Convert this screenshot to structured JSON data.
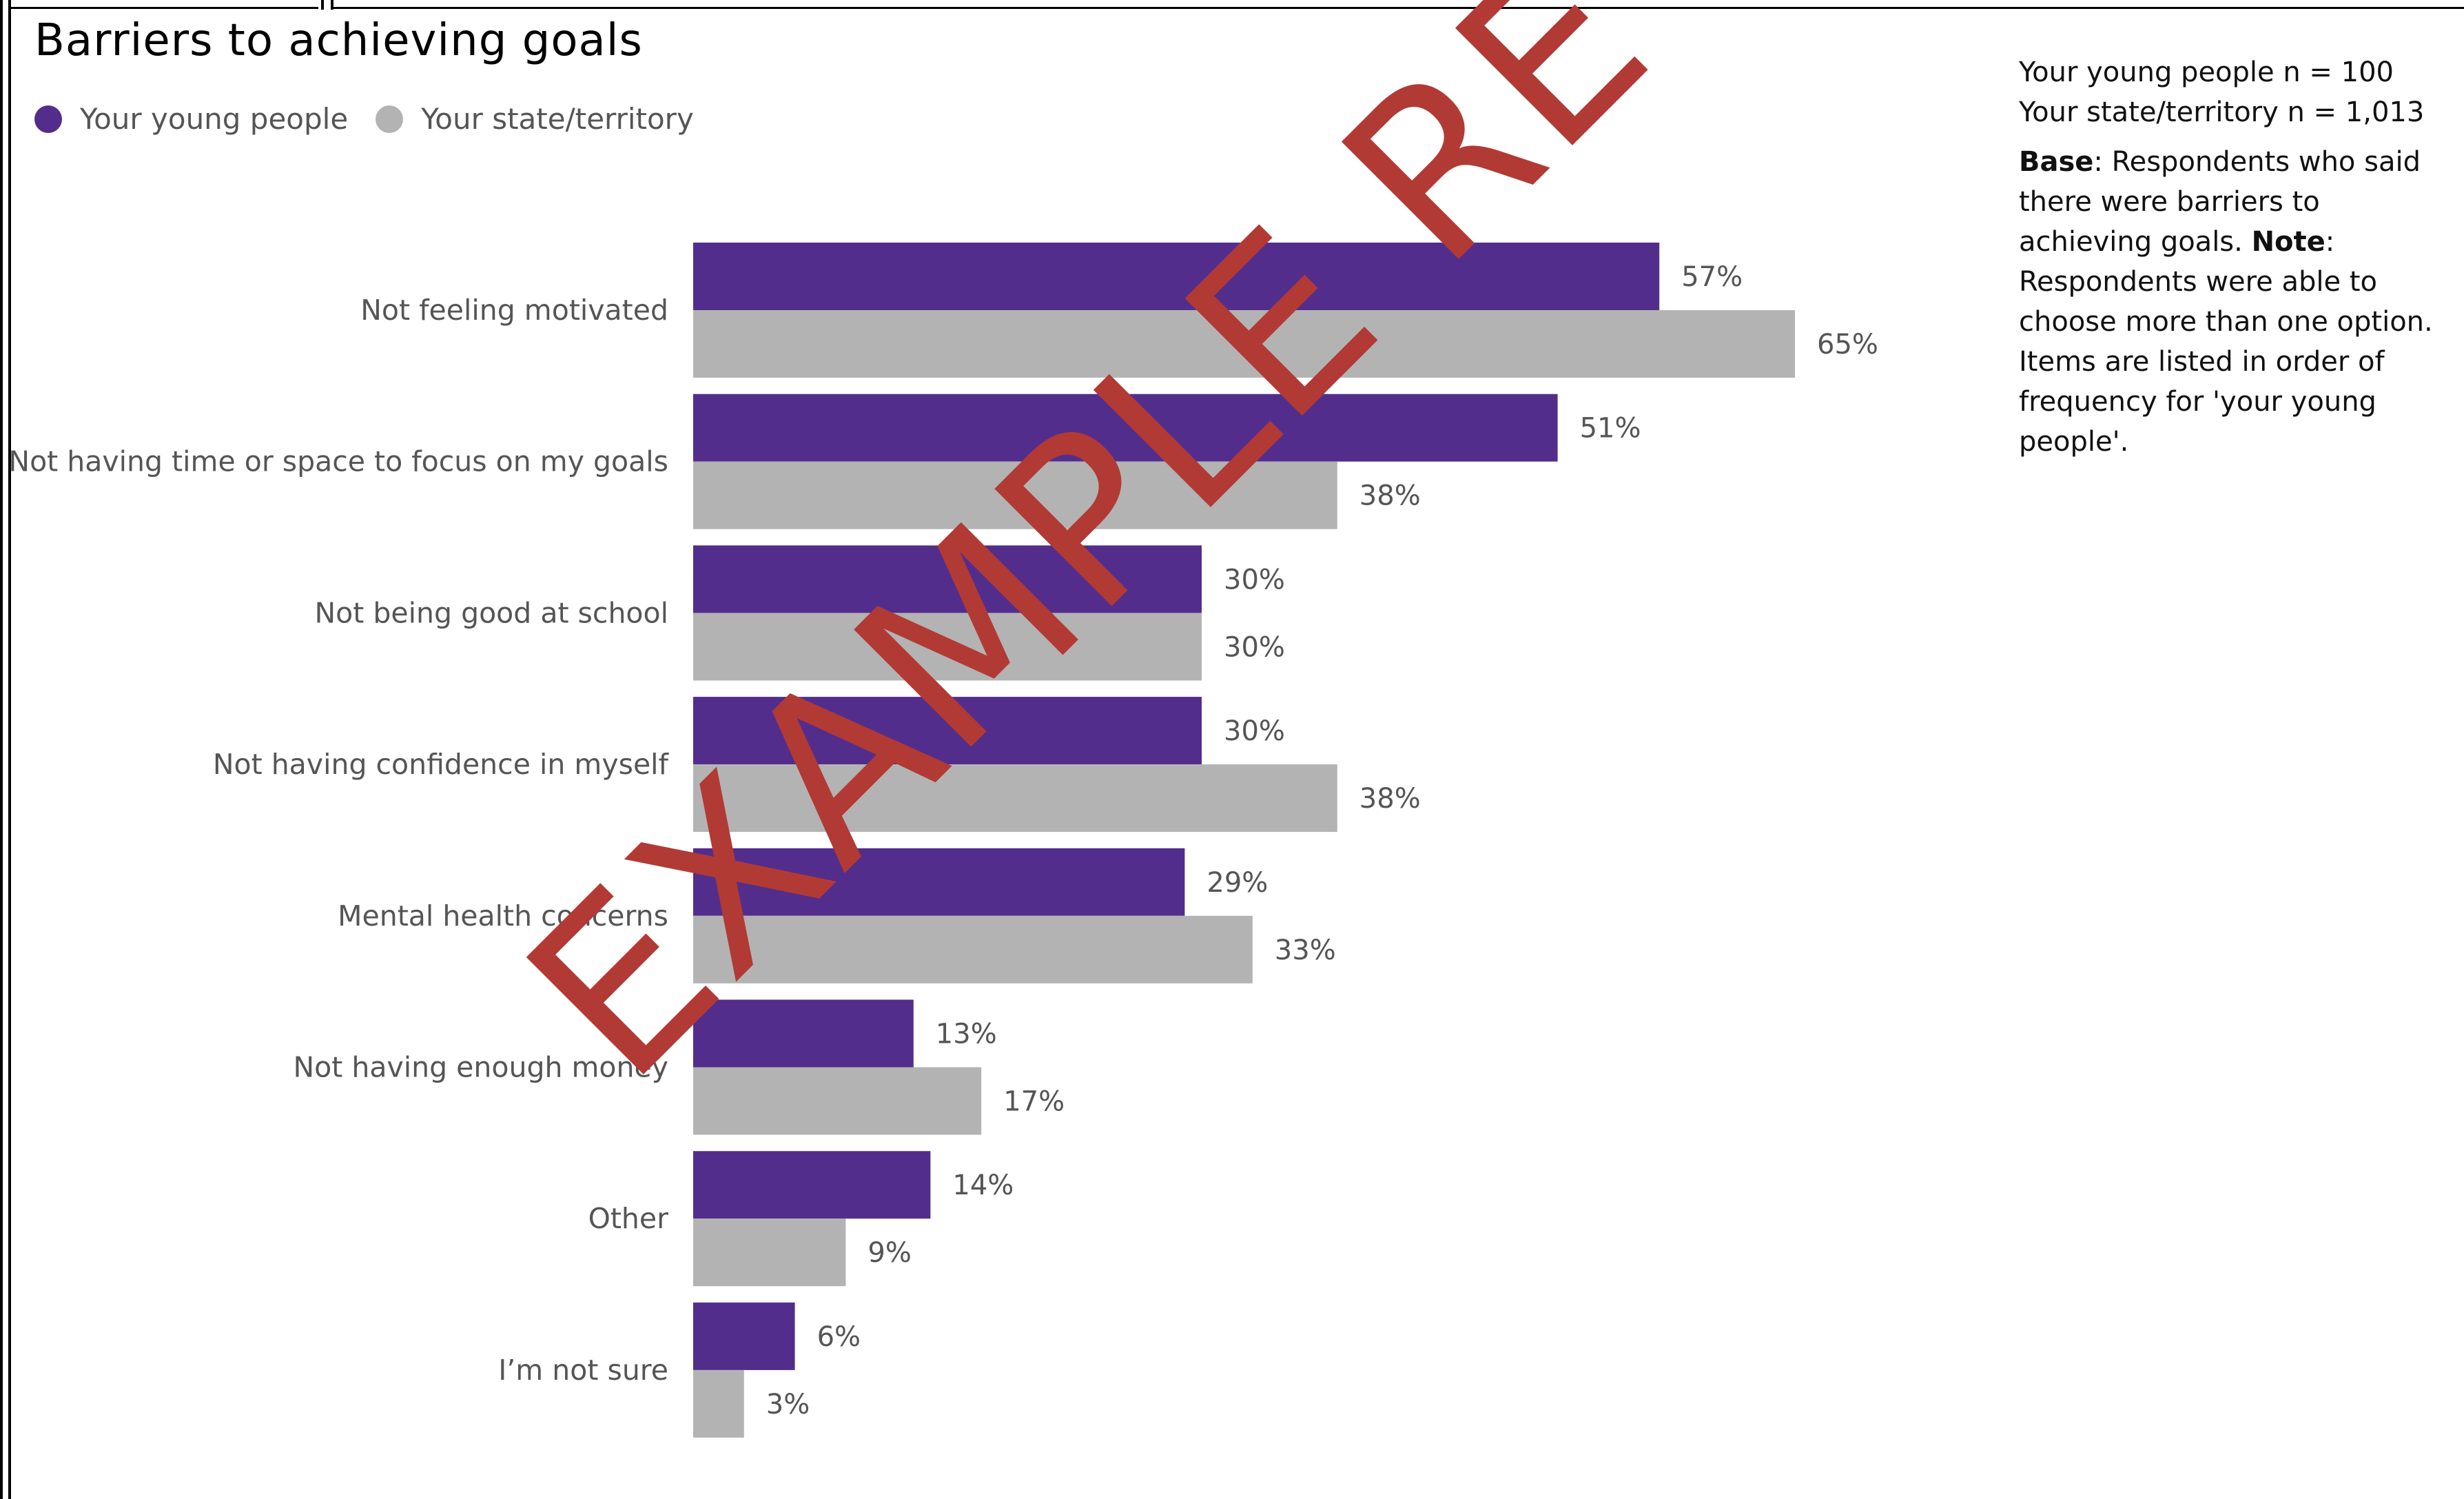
{
  "chart_data": {
    "type": "bar",
    "orientation": "horizontal",
    "title": "Barriers to achieving goals",
    "categories": [
      "Not feeling motivated",
      "Not having time or space to focus on my goals",
      "Not being good at school",
      "Not having confidence in myself",
      "Mental health concerns",
      "Not having enough money",
      "Other",
      "I’m not sure"
    ],
    "series": [
      {
        "name": "Your young people",
        "color": "#532d8c",
        "values": [
          57,
          51,
          30,
          30,
          29,
          13,
          14,
          6
        ],
        "labels": [
          "57%",
          "51%",
          "30%",
          "30%",
          "29%",
          "13%",
          "14%",
          "6%"
        ]
      },
      {
        "name": "Your state/territory",
        "color": "#b3b3b3",
        "values": [
          65,
          38,
          30,
          38,
          33,
          17,
          9,
          3
        ],
        "labels": [
          "65%",
          "38%",
          "30%",
          "38%",
          "33%",
          "17%",
          "9%",
          "3%"
        ]
      }
    ],
    "xlim": [
      0,
      100
    ],
    "grid": false,
    "legend_position": "top-left"
  },
  "notes": {
    "count_young": "Your young people n = 100",
    "count_state": "Your state/territory n = 1,013",
    "base_label": "Base",
    "base_text": ": Respondents who said there were barriers to achieving goals. ",
    "note_label": "Note",
    "note_text": ": Respondents were able to choose more than one option. Items are listed in order of frequency for 'your young people'."
  },
  "watermark": {
    "text": "EXAMPLE RE"
  }
}
